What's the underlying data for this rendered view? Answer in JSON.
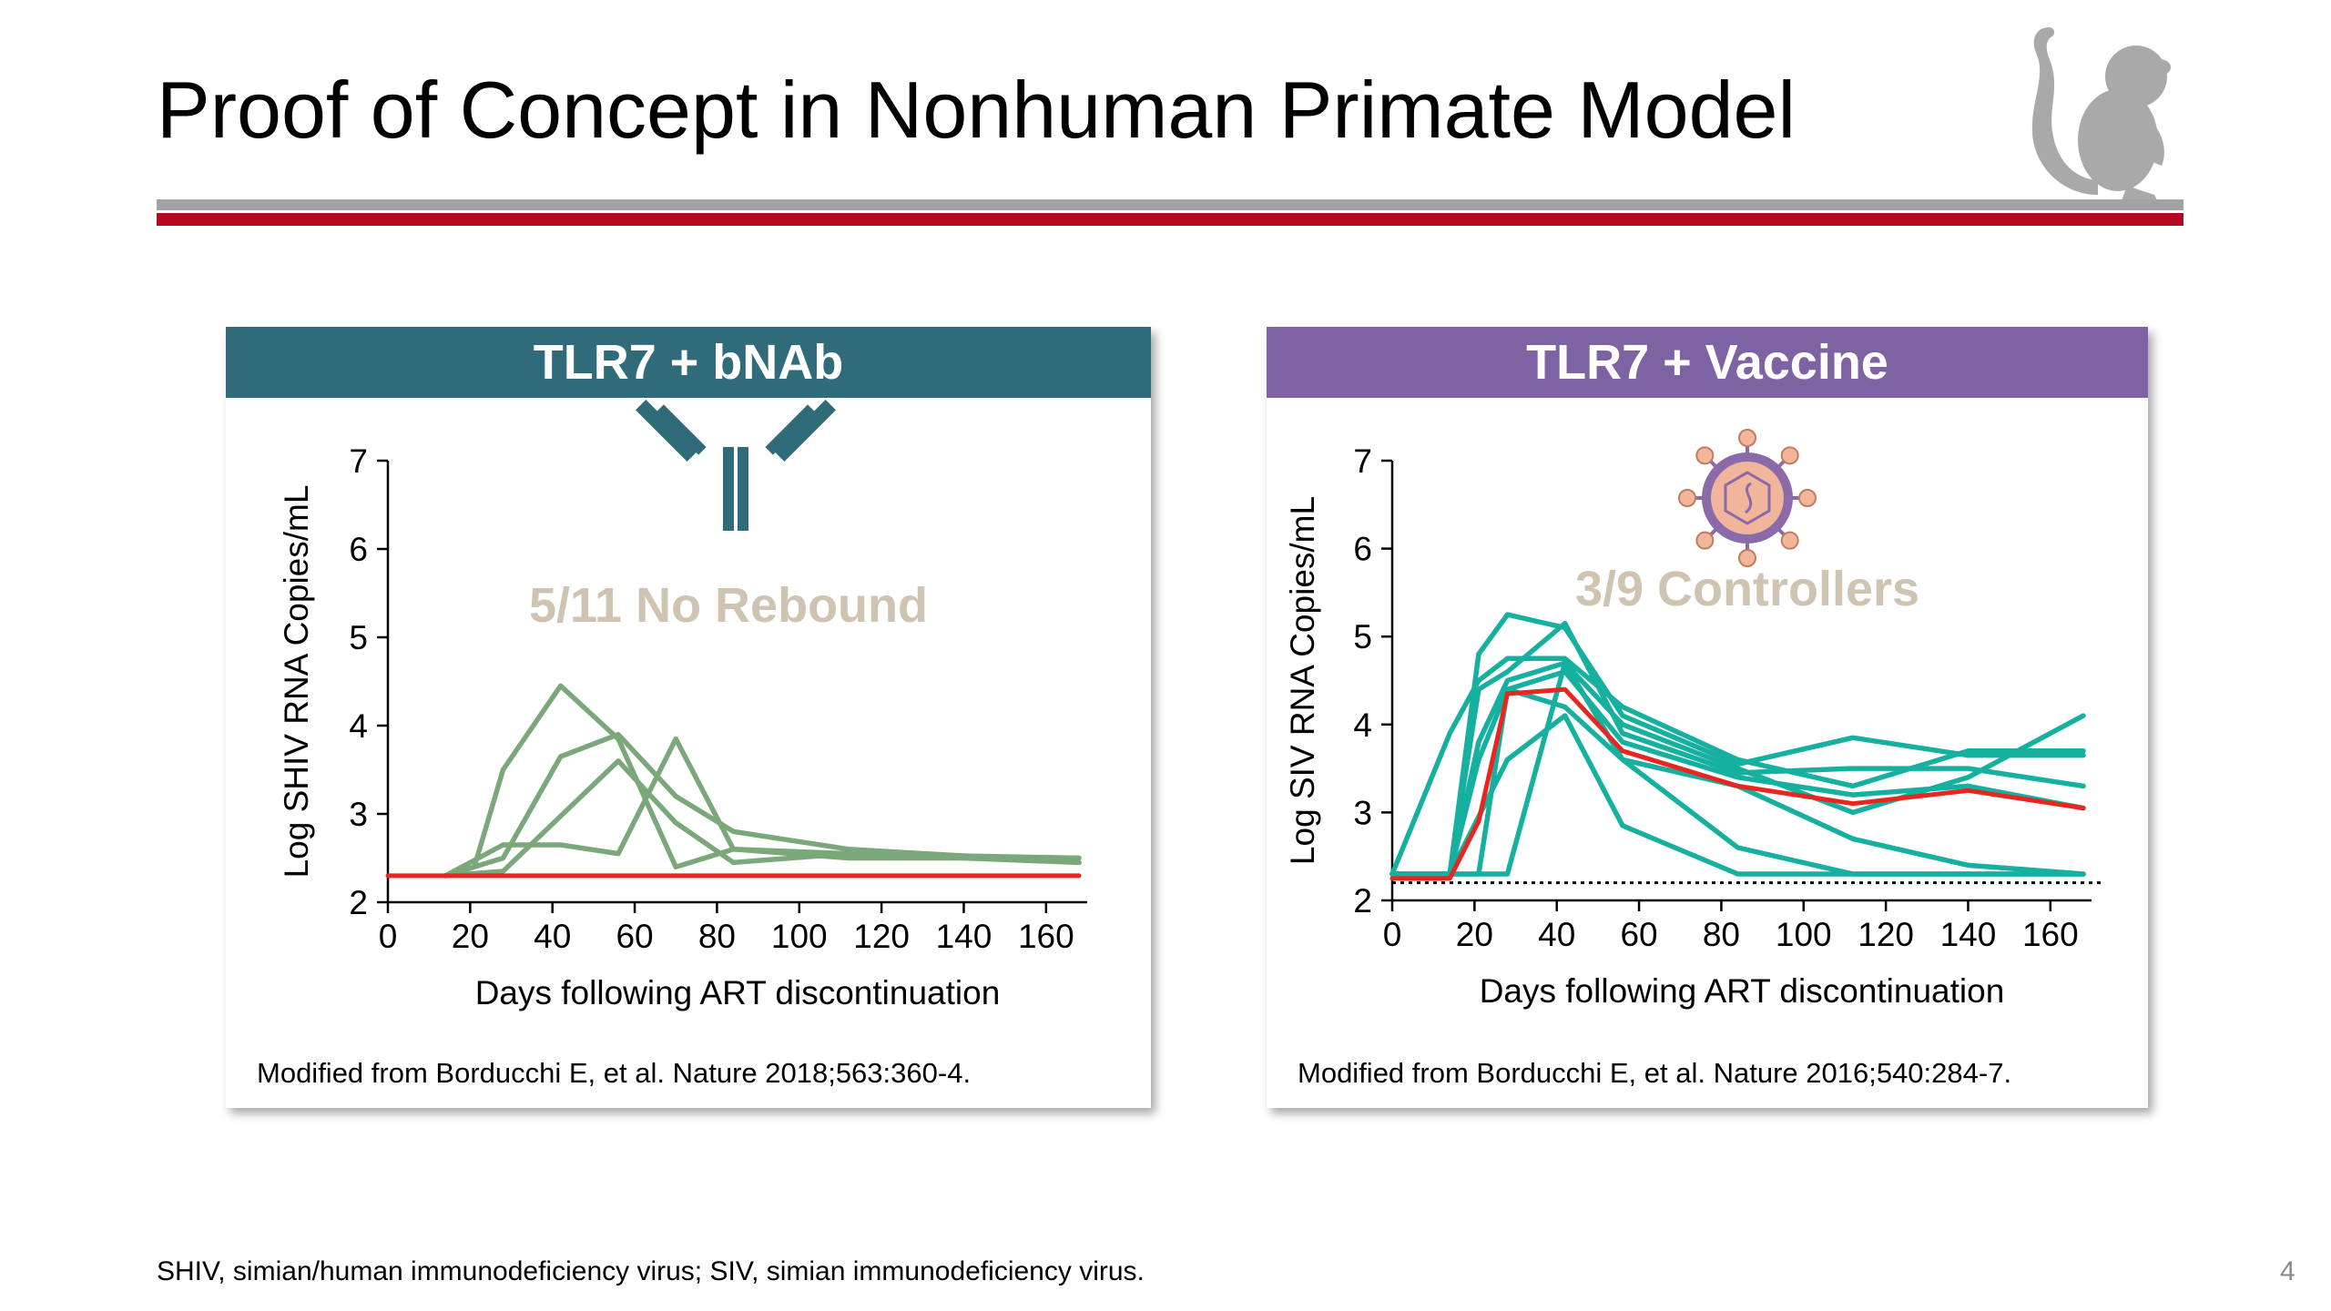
{
  "slide": {
    "title": "Proof of Concept in Nonhuman Primate Model",
    "footnote": "SHIV, simian/human immunodeficiency virus; SIV, simian immunodeficiency virus.",
    "page_number": "4"
  },
  "colors": {
    "left_header": "#2f6b78",
    "right_header": "#7e63a3",
    "green_series": "#7aa87a",
    "teal_series": "#16b0a0",
    "red_series": "#e8251f",
    "annotation": "#cfc3b2"
  },
  "icons": [
    "monkey-icon",
    "antibody-icon",
    "virus-icon"
  ],
  "chart_data": [
    {
      "type": "line",
      "header": "TLR7 + bNAb",
      "annotation": "5/11 No Rebound",
      "citation": "Modified from Borducchi E, et al. Nature 2018;563:360-4.",
      "xlabel": "Days following ART discontinuation",
      "ylabel": "Log SHIV RNA Copies/mL",
      "xlim": [
        0,
        170
      ],
      "ylim": [
        2,
        7
      ],
      "xticks": [
        0,
        20,
        40,
        60,
        80,
        100,
        120,
        140,
        160
      ],
      "yticks": [
        2,
        3,
        4,
        5,
        6,
        7
      ],
      "series": [
        {
          "color": "green",
          "points": [
            [
              14,
              2.3
            ],
            [
              21,
              2.4
            ],
            [
              28,
              3.5
            ],
            [
              42,
              4.45
            ],
            [
              56,
              3.85
            ],
            [
              70,
              2.4
            ],
            [
              84,
              2.6
            ],
            [
              112,
              2.55
            ],
            [
              168,
              2.5
            ]
          ]
        },
        {
          "color": "green",
          "points": [
            [
              14,
              2.3
            ],
            [
              28,
              2.5
            ],
            [
              42,
              3.65
            ],
            [
              56,
              3.9
            ],
            [
              70,
              3.2
            ],
            [
              84,
              2.8
            ],
            [
              112,
              2.6
            ],
            [
              168,
              2.45
            ]
          ]
        },
        {
          "color": "green",
          "points": [
            [
              14,
              2.3
            ],
            [
              28,
              2.65
            ],
            [
              42,
              2.65
            ],
            [
              56,
              2.55
            ],
            [
              70,
              3.85
            ],
            [
              84,
              2.6
            ],
            [
              112,
              2.5
            ],
            [
              168,
              2.5
            ]
          ]
        },
        {
          "color": "green",
          "points": [
            [
              14,
              2.3
            ],
            [
              28,
              2.35
            ],
            [
              56,
              3.6
            ],
            [
              70,
              2.9
            ],
            [
              84,
              2.45
            ],
            [
              112,
              2.55
            ],
            [
              140,
              2.5
            ],
            [
              168,
              2.45
            ]
          ]
        },
        {
          "color": "red",
          "points": [
            [
              0,
              2.3
            ],
            [
              168,
              2.3
            ]
          ]
        }
      ]
    },
    {
      "type": "line",
      "header": "TLR7 + Vaccine",
      "annotation": "3/9 Controllers",
      "citation": "Modified from Borducchi E, et al. Nature 2016;540:284-7.",
      "xlabel": "Days following ART discontinuation",
      "ylabel": "Log SIV RNA Copies/mL",
      "xlim": [
        0,
        170
      ],
      "ylim": [
        2,
        7
      ],
      "xticks": [
        0,
        20,
        40,
        60,
        80,
        100,
        120,
        140,
        160
      ],
      "yticks": [
        2,
        3,
        4,
        5,
        6,
        7
      ],
      "limit_line": 2.2,
      "series": [
        {
          "color": "teal",
          "points": [
            [
              0,
              2.3
            ],
            [
              14,
              2.3
            ],
            [
              21,
              4.8
            ],
            [
              28,
              5.25
            ],
            [
              42,
              5.1
            ],
            [
              56,
              4.1
            ],
            [
              84,
              3.55
            ],
            [
              112,
              3.85
            ],
            [
              140,
              3.65
            ],
            [
              168,
              3.65
            ]
          ]
        },
        {
          "color": "teal",
          "points": [
            [
              0,
              2.3
            ],
            [
              14,
              2.3
            ],
            [
              21,
              4.4
            ],
            [
              28,
              4.6
            ],
            [
              42,
              5.15
            ],
            [
              56,
              3.9
            ],
            [
              84,
              3.45
            ],
            [
              112,
              3.5
            ],
            [
              140,
              3.5
            ],
            [
              168,
              3.3
            ]
          ]
        },
        {
          "color": "teal",
          "points": [
            [
              0,
              2.3
            ],
            [
              14,
              3.9
            ],
            [
              21,
              4.5
            ],
            [
              28,
              4.75
            ],
            [
              42,
              4.75
            ],
            [
              56,
              4.2
            ],
            [
              84,
              3.6
            ],
            [
              112,
              3.3
            ],
            [
              140,
              3.7
            ],
            [
              168,
              3.7
            ]
          ]
        },
        {
          "color": "teal",
          "points": [
            [
              0,
              2.3
            ],
            [
              14,
              2.3
            ],
            [
              21,
              3.8
            ],
            [
              28,
              4.5
            ],
            [
              42,
              4.7
            ],
            [
              56,
              4.0
            ],
            [
              84,
              3.5
            ],
            [
              112,
              3.0
            ],
            [
              140,
              3.4
            ],
            [
              168,
              4.1
            ]
          ]
        },
        {
          "color": "teal",
          "points": [
            [
              0,
              2.3
            ],
            [
              14,
              2.3
            ],
            [
              21,
              2.3
            ],
            [
              28,
              4.4
            ],
            [
              42,
              4.6
            ],
            [
              56,
              3.8
            ],
            [
              84,
              3.4
            ],
            [
              112,
              3.2
            ],
            [
              140,
              3.3
            ],
            [
              168,
              3.05
            ]
          ]
        },
        {
          "color": "teal",
          "points": [
            [
              0,
              2.3
            ],
            [
              14,
              2.3
            ],
            [
              28,
              2.3
            ],
            [
              42,
              4.7
            ],
            [
              56,
              3.6
            ],
            [
              84,
              3.3
            ],
            [
              112,
              2.7
            ],
            [
              140,
              2.4
            ],
            [
              168,
              2.3
            ]
          ]
        },
        {
          "color": "teal",
          "points": [
            [
              0,
              2.3
            ],
            [
              14,
              2.3
            ],
            [
              28,
              3.6
            ],
            [
              42,
              4.1
            ],
            [
              56,
              2.85
            ],
            [
              84,
              2.3
            ],
            [
              112,
              2.3
            ],
            [
              168,
              2.3
            ]
          ]
        },
        {
          "color": "teal",
          "points": [
            [
              0,
              2.3
            ],
            [
              14,
              2.3
            ],
            [
              21,
              3.6
            ],
            [
              28,
              4.4
            ],
            [
              42,
              4.2
            ],
            [
              56,
              3.6
            ],
            [
              84,
              2.6
            ],
            [
              112,
              2.3
            ],
            [
              168,
              2.3
            ]
          ]
        },
        {
          "color": "red",
          "points": [
            [
              0,
              2.25
            ],
            [
              14,
              2.25
            ],
            [
              21,
              2.9
            ],
            [
              28,
              4.35
            ],
            [
              42,
              4.4
            ],
            [
              56,
              3.7
            ],
            [
              84,
              3.3
            ],
            [
              112,
              3.1
            ],
            [
              140,
              3.25
            ],
            [
              168,
              3.05
            ]
          ]
        }
      ]
    }
  ]
}
